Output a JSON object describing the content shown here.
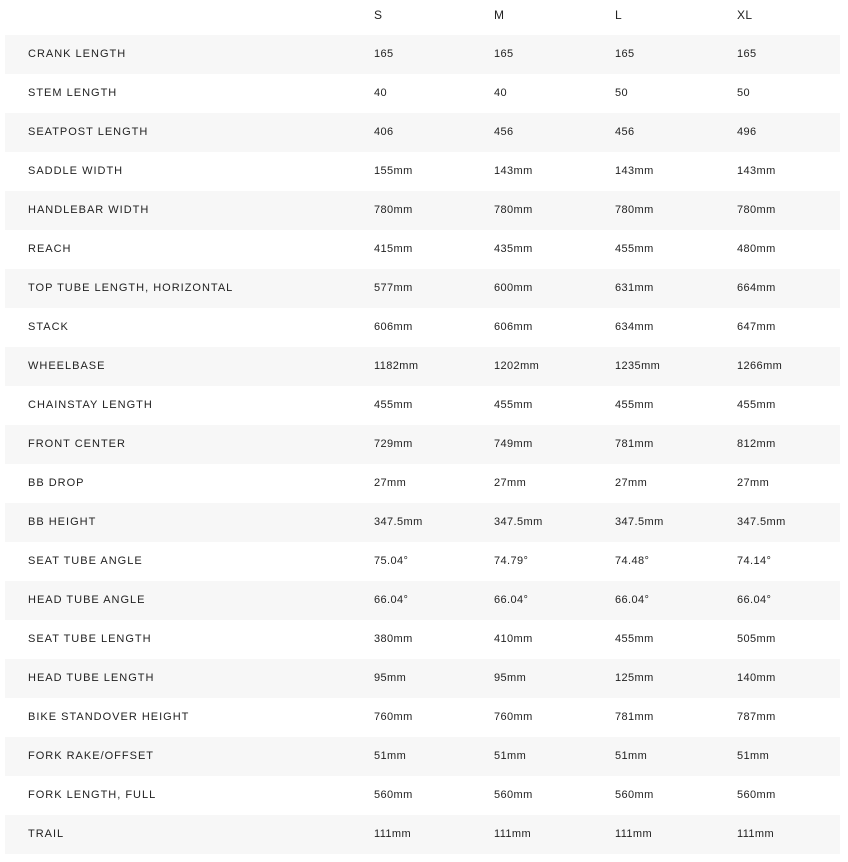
{
  "sizes": [
    "S",
    "M",
    "L",
    "XL"
  ],
  "colors": {
    "row_alt": "#f7f7f7",
    "text": "#222222"
  },
  "rows": [
    {
      "label": "CRANK LENGTH",
      "values": [
        "165",
        "165",
        "165",
        "165"
      ]
    },
    {
      "label": "STEM LENGTH",
      "values": [
        "40",
        "40",
        "50",
        "50"
      ]
    },
    {
      "label": "SEATPOST LENGTH",
      "values": [
        "406",
        "456",
        "456",
        "496"
      ]
    },
    {
      "label": "SADDLE WIDTH",
      "values": [
        "155mm",
        "143mm",
        "143mm",
        "143mm"
      ]
    },
    {
      "label": "HANDLEBAR WIDTH",
      "values": [
        "780mm",
        "780mm",
        "780mm",
        "780mm"
      ]
    },
    {
      "label": "REACH",
      "values": [
        "415mm",
        "435mm",
        "455mm",
        "480mm"
      ]
    },
    {
      "label": "TOP TUBE LENGTH, HORIZONTAL",
      "values": [
        "577mm",
        "600mm",
        "631mm",
        "664mm"
      ]
    },
    {
      "label": "STACK",
      "values": [
        "606mm",
        "606mm",
        "634mm",
        "647mm"
      ]
    },
    {
      "label": "WHEELBASE",
      "values": [
        "1182mm",
        "1202mm",
        "1235mm",
        "1266mm"
      ]
    },
    {
      "label": "CHAINSTAY LENGTH",
      "values": [
        "455mm",
        "455mm",
        "455mm",
        "455mm"
      ]
    },
    {
      "label": "FRONT CENTER",
      "values": [
        "729mm",
        "749mm",
        "781mm",
        "812mm"
      ]
    },
    {
      "label": "BB DROP",
      "values": [
        "27mm",
        "27mm",
        "27mm",
        "27mm"
      ]
    },
    {
      "label": "BB HEIGHT",
      "values": [
        "347.5mm",
        "347.5mm",
        "347.5mm",
        "347.5mm"
      ]
    },
    {
      "label": "SEAT TUBE ANGLE",
      "values": [
        "75.04°",
        "74.79°",
        "74.48°",
        "74.14°"
      ]
    },
    {
      "label": "HEAD TUBE ANGLE",
      "values": [
        "66.04°",
        "66.04°",
        "66.04°",
        "66.04°"
      ]
    },
    {
      "label": "SEAT TUBE LENGTH",
      "values": [
        "380mm",
        "410mm",
        "455mm",
        "505mm"
      ]
    },
    {
      "label": "HEAD TUBE LENGTH",
      "values": [
        "95mm",
        "95mm",
        "125mm",
        "140mm"
      ]
    },
    {
      "label": "BIKE STANDOVER HEIGHT",
      "values": [
        "760mm",
        "760mm",
        "781mm",
        "787mm"
      ]
    },
    {
      "label": "FORK RAKE/OFFSET",
      "values": [
        "51mm",
        "51mm",
        "51mm",
        "51mm"
      ]
    },
    {
      "label": "FORK LENGTH, FULL",
      "values": [
        "560mm",
        "560mm",
        "560mm",
        "560mm"
      ]
    },
    {
      "label": "TRAIL",
      "values": [
        "111mm",
        "111mm",
        "111mm",
        "111mm"
      ]
    }
  ]
}
